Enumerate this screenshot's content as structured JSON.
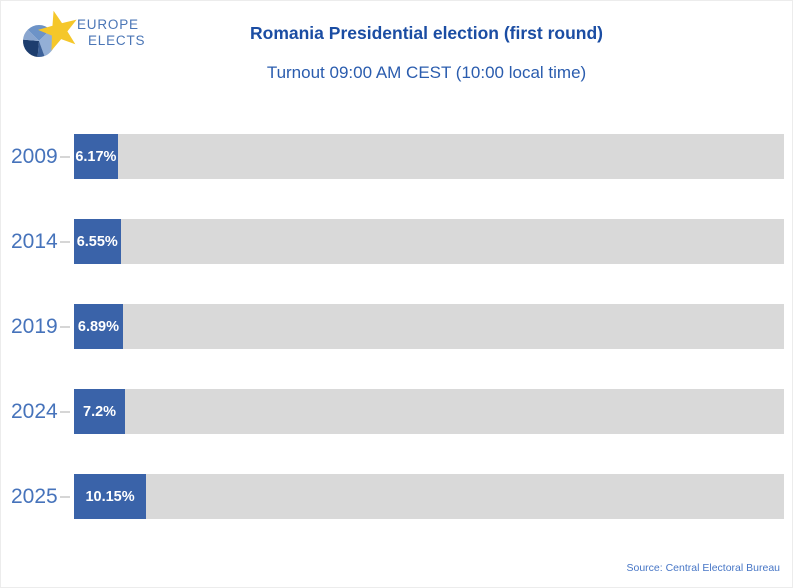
{
  "logo": {
    "line1": "EUROPE",
    "line2": "ELECTS"
  },
  "header": {
    "title": "Romania Presidential election (first round)",
    "subtitle": "Turnout 09:00 AM CEST (10:00 local time)"
  },
  "chart_data": {
    "type": "bar",
    "orientation": "horizontal",
    "title": "Romania Presidential election (first round)",
    "subtitle": "Turnout 09:00 AM CEST (10:00 local time)",
    "categories": [
      "2009",
      "2014",
      "2019",
      "2024",
      "2025"
    ],
    "values": [
      6.17,
      6.55,
      6.89,
      7.2,
      10.15
    ],
    "value_labels": [
      "6.17%",
      "6.55%",
      "6.89%",
      "7.2%",
      "10.15%"
    ],
    "xlim": [
      0,
      100
    ],
    "unit": "%",
    "grid": false,
    "bar_color": "#3a63a9",
    "track_color": "#d9d9d9",
    "value_label_color": "#ffffff",
    "category_label_color": "#4673bb"
  },
  "footer": {
    "source": "Source: Central Electoral Bureau"
  },
  "colors": {
    "title_blue": "#1b4da3",
    "subtitle_blue": "#2a5cae",
    "logo_star_yellow": "#f5c72a",
    "logo_navy": "#1d3d6e",
    "background": "#ffffff"
  }
}
